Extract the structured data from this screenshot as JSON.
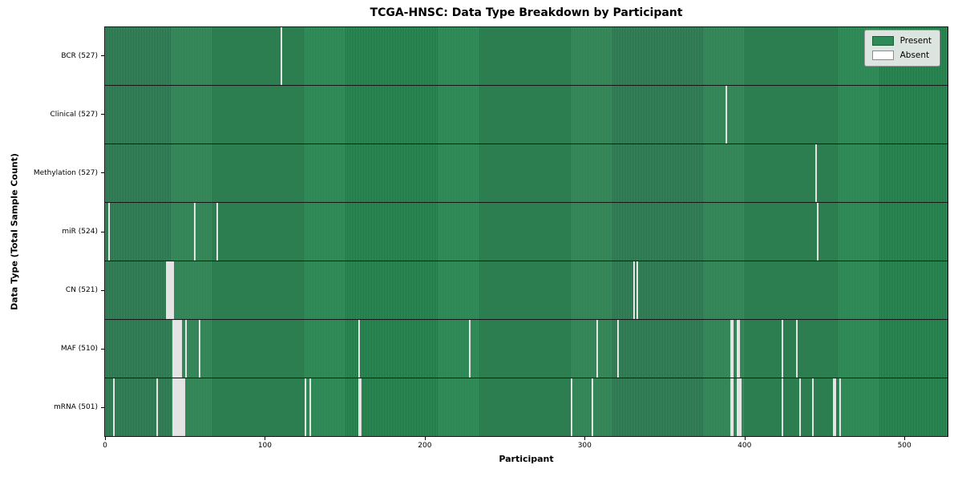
{
  "chart_data": {
    "type": "heatmap",
    "title": "TCGA-HNSC: Data Type Breakdown by Participant",
    "xlabel": "Participant",
    "ylabel": "Data Type (Total Sample Count)",
    "x_ticks": [
      0,
      100,
      200,
      300,
      400,
      500
    ],
    "n_participants": 528,
    "xlim": [
      -0.5,
      527.5
    ],
    "grid": false,
    "legend": {
      "position": "upper right",
      "entries": [
        {
          "label": "Present",
          "color": "#2e8b57"
        },
        {
          "label": "Absent",
          "color": "#ffffff"
        }
      ]
    },
    "rows": [
      {
        "name": "bcr",
        "label": "BCR (527)",
        "total_present": 527,
        "absent_participants": [
          110
        ]
      },
      {
        "name": "clinical",
        "label": "Clinical (527)",
        "total_present": 527,
        "absent_participants": [
          389
        ]
      },
      {
        "name": "methylation",
        "label": "Methylation (527)",
        "total_present": 527,
        "absent_participants": [
          445
        ]
      },
      {
        "name": "mir",
        "label": "miR (524)",
        "total_present": 524,
        "absent_participants": [
          2,
          56,
          70,
          446
        ]
      },
      {
        "name": "cn",
        "label": "CN (521)",
        "total_present": 521,
        "absent_participants": [
          38,
          39,
          40,
          41,
          42,
          331,
          333
        ]
      },
      {
        "name": "maf",
        "label": "MAF (510)",
        "total_present": 510,
        "absent_participants": [
          42,
          43,
          44,
          45,
          46,
          47,
          50,
          59,
          159,
          228,
          308,
          321,
          392,
          393,
          396,
          397,
          424,
          433
        ]
      },
      {
        "name": "mrna",
        "label": "mRNA (501)",
        "total_present": 501,
        "absent_participants": [
          5,
          32,
          42,
          43,
          44,
          45,
          46,
          47,
          48,
          49,
          125,
          128,
          159,
          160,
          292,
          305,
          392,
          393,
          396,
          397,
          398,
          424,
          435,
          443,
          456,
          457,
          460
        ]
      }
    ],
    "colors": {
      "present": "#2e8b57",
      "present_edge": "#206b43",
      "absent": "#f8f8f8",
      "row_separator": "#161616"
    }
  }
}
